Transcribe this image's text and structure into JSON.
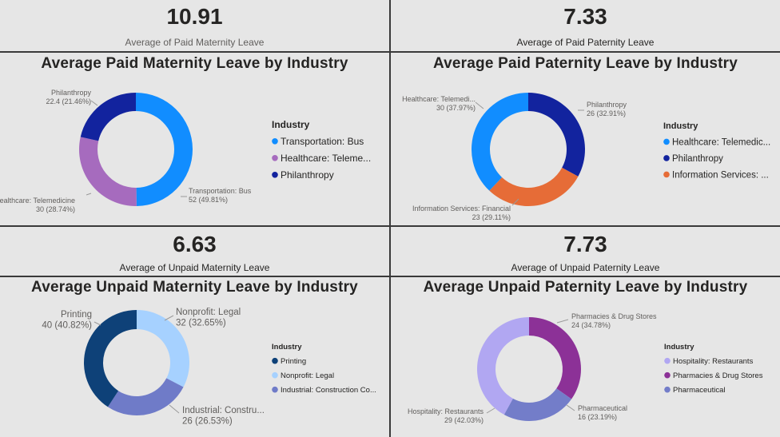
{
  "kpis": [
    {
      "value": "10.91",
      "label": "Average of Paid Maternity Leave"
    },
    {
      "value": "7.33",
      "label": "Average of Paid Paternity Leave"
    },
    {
      "value": "6.63",
      "label": "Average of Unpaid Maternity Leave"
    },
    {
      "value": "7.73",
      "label": "Average of Unpaid Paternity Leave"
    }
  ],
  "chart_data": [
    {
      "type": "pie",
      "title": "Average Paid Maternity Leave by Industry",
      "legend_title": "Industry",
      "legend_position": "right",
      "slices": [
        {
          "name": "Transportation: Bus",
          "legend": "Transportation: Bus",
          "value": 52,
          "label_name": "Transportation: Bus",
          "label_value": "52 (49.81%)",
          "color": "#118DFF"
        },
        {
          "name": "Healthcare: Telemedicine",
          "legend": "Healthcare: Teleme...",
          "value": 30,
          "label_name": "Healthcare: Telemedicine",
          "label_value": "30 (28.74%)",
          "color": "#A66BBE"
        },
        {
          "name": "Philanthropy",
          "legend": "Philanthropy",
          "value": 22.4,
          "label_name": "Philanthropy",
          "label_value": "22.4 (21.46%)",
          "color": "#12239E"
        }
      ]
    },
    {
      "type": "pie",
      "title": "Average Paid Paternity Leave by Industry",
      "legend_title": "Industry",
      "legend_position": "right",
      "slices": [
        {
          "name": "Philanthropy",
          "legend": "Philanthropy",
          "value": 26,
          "label_name": "Philanthropy",
          "label_value": "26 (32.91%)",
          "color": "#12239E"
        },
        {
          "name": "Information Services: Financial",
          "legend": "Information Services: ...",
          "value": 23,
          "label_name": "Information Services: Financial",
          "label_value": "23 (29.11%)",
          "color": "#E66C37"
        },
        {
          "name": "Healthcare: Telemedicine",
          "legend": "Healthcare: Telemedic...",
          "value": 30,
          "label_name": "Healthcare: Telemedi...",
          "label_value": "30 (37.97%)",
          "color": "#118DFF"
        }
      ],
      "legend_order": [
        2,
        0,
        1
      ]
    },
    {
      "type": "pie",
      "title": "Average Unpaid Maternity Leave by Industry",
      "legend_title": "Industry",
      "legend_position": "right",
      "slices": [
        {
          "name": "Nonprofit: Legal",
          "legend": "Nonprofit: Legal",
          "value": 32,
          "label_name": "Nonprofit: Legal",
          "label_value": "32 (32.65%)",
          "color": "#A6D1FF"
        },
        {
          "name": "Industrial: Construction",
          "legend": "Industrial: Construction Co...",
          "value": 26,
          "label_name": "Industrial: Constru...",
          "label_value": "26 (26.53%)",
          "color": "#6F7BC8"
        },
        {
          "name": "Printing",
          "legend": "Printing",
          "value": 40,
          "label_name": "Printing",
          "label_value": "40 (40.82%)",
          "color": "#0E4178"
        }
      ],
      "legend_order": [
        2,
        0,
        1
      ]
    },
    {
      "type": "pie",
      "title": "Average Unpaid Paternity Leave by Industry",
      "legend_title": "Industry",
      "legend_position": "right",
      "slices": [
        {
          "name": "Pharmacies & Drug Stores",
          "legend": "Pharmacies & Drug Stores",
          "value": 24,
          "label_name": "Pharmacies & Drug Stores",
          "label_value": "24 (34.78%)",
          "color": "#8C3197"
        },
        {
          "name": "Pharmaceutical",
          "legend": "Pharmaceutical",
          "value": 16,
          "label_name": "Pharmaceutical",
          "label_value": "16 (23.19%)",
          "color": "#737DC9"
        },
        {
          "name": "Hospitality: Restaurants",
          "legend": "Hospitality: Restaurants",
          "value": 29,
          "label_name": "Hospitality: Restaurants",
          "label_value": "29 (42.03%)",
          "color": "#B1A7F2"
        }
      ],
      "legend_order": [
        2,
        0,
        1
      ]
    }
  ]
}
